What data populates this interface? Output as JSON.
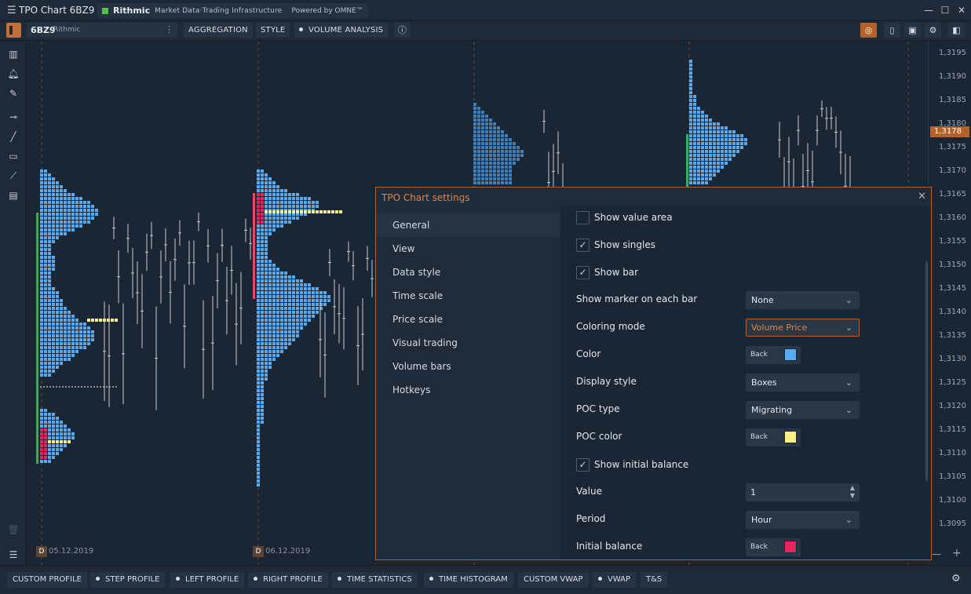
{
  "window": {
    "title": "TPO Chart 6BZ9",
    "provider_brand": "Rithmic",
    "provider_tagline": "Market Data·Trading Infrastructure",
    "provider_powered": "Powered by OMNE™"
  },
  "toolbar": {
    "symbol": "6BZ9",
    "feed": "Rithmic",
    "aggregation_label": "AGGREGATION",
    "style_label": "STYLE",
    "volume_analysis_label": "VOLUME ANALYSIS"
  },
  "price_axis": {
    "labels": [
      "1,3195",
      "1,3190",
      "1,3185",
      "1,3180",
      "1,3175",
      "1,3170",
      "1,3165",
      "1,3160",
      "1,3155",
      "1,3150",
      "1,3145",
      "1,3140",
      "1,3135",
      "1,3130",
      "1,3125",
      "1,3120",
      "1,3115",
      "1,3110",
      "1,3105",
      "1,3100",
      "1,3095"
    ],
    "current_price": "1,3178",
    "current_color": "#b5612b"
  },
  "dates": [
    {
      "marker": "D",
      "label": "05.12.2019"
    },
    {
      "marker": "D",
      "label": "06.12.2019"
    }
  ],
  "dialog": {
    "title": "TPO Chart settings",
    "nav": [
      "General",
      "View",
      "Data style",
      "Time scale",
      "Price scale",
      "Visual trading",
      "Volume bars",
      "Hotkeys"
    ],
    "active_nav": "General",
    "show_value_area": "Show value area",
    "show_singles": "Show singles",
    "show_bar": "Show bar",
    "marker_label": "Show marker on each bar",
    "marker_value": "None",
    "coloring_label": "Coloring mode",
    "coloring_value": "Volume Price",
    "color_label": "Color",
    "color_back": "Back",
    "color_value": "#5aaaf0",
    "display_style_label": "Display style",
    "display_style_value": "Boxes",
    "poc_type_label": "POC type",
    "poc_type_value": "Migrating",
    "poc_color_label": "POC color",
    "poc_color_back": "Back",
    "poc_color_value": "#fdf08a",
    "initial_balance_check": "Show initial balance",
    "value_label": "Value",
    "value_value": "1",
    "period_label": "Period",
    "period_value": "Hour",
    "ib_label": "Initial balance",
    "ib_back": "Back",
    "ib_color": "#e52660"
  },
  "bottom": {
    "custom_profile": "CUSTOM PROFILE",
    "step_profile": "STEP PROFILE",
    "left_profile": "LEFT PROFILE",
    "right_profile": "RIGHT PROFILE",
    "time_statistics": "TIME STATISTICS",
    "time_histogram": "TIME HISTOGRAM",
    "custom_vwap": "CUSTOM VWAP",
    "vwap": "VWAP",
    "ts": "T&S"
  }
}
